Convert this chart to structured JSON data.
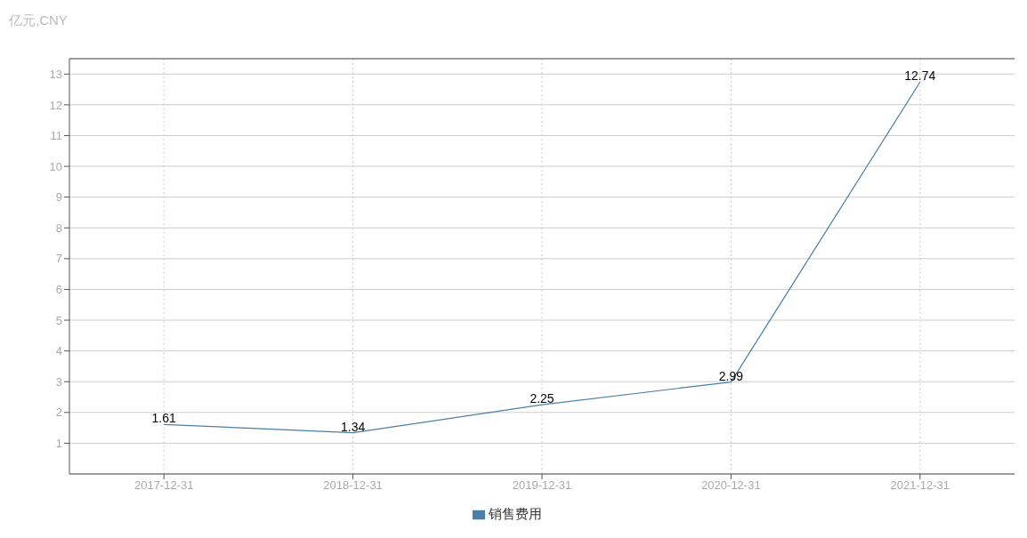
{
  "chart_data": {
    "type": "line",
    "ylabel": "亿元,CNY",
    "categories": [
      "2017-12-31",
      "2018-12-31",
      "2019-12-31",
      "2020-12-31",
      "2021-12-31"
    ],
    "series": [
      {
        "name": "销售费用",
        "color": "#4a7fa8",
        "values": [
          1.61,
          1.34,
          2.25,
          2.99,
          12.74
        ]
      }
    ],
    "ylim": [
      0,
      13.5
    ],
    "yticks": [
      1,
      2,
      3,
      4,
      5,
      6,
      7,
      8,
      9,
      10,
      11,
      12,
      13
    ],
    "grid": true,
    "legend": "bottom",
    "data_labels": true,
    "marker": "none",
    "line_style": "solid"
  }
}
